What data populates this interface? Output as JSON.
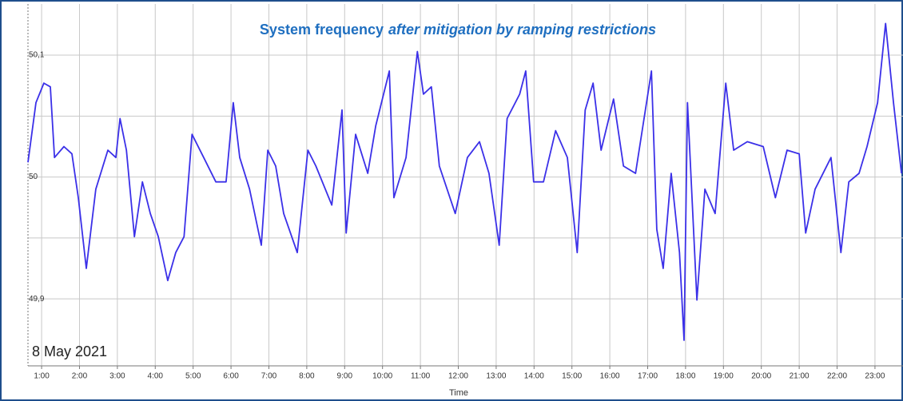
{
  "chart_data": {
    "type": "line",
    "title": "System frequency",
    "title_italic": "after mitigation by ramping restrictions",
    "date_label": "8 May 2021",
    "x_label": "Time",
    "x": [
      0.64,
      0.85,
      1.06,
      1.23,
      1.34,
      1.59,
      1.8,
      1.97,
      2.18,
      2.43,
      2.75,
      2.96,
      3.07,
      3.24,
      3.45,
      3.66,
      3.87,
      4.08,
      4.33,
      4.54,
      4.76,
      4.97,
      5.28,
      5.6,
      5.87,
      6.06,
      6.23,
      6.49,
      6.8,
      6.97,
      7.18,
      7.39,
      7.75,
      8.03,
      8.24,
      8.66,
      8.93,
      9.04,
      9.29,
      9.61,
      9.82,
      10.18,
      10.3,
      10.62,
      10.92,
      11.08,
      11.29,
      11.5,
      11.92,
      12.24,
      12.56,
      12.81,
      13.08,
      13.29,
      13.62,
      13.78,
      13.99,
      14.25,
      14.57,
      14.88,
      15.14,
      15.35,
      15.56,
      15.77,
      16.1,
      16.36,
      16.68,
      17.1,
      17.24,
      17.41,
      17.62,
      17.84,
      17.96,
      18.05,
      18.3,
      18.51,
      18.78,
      19.06,
      19.27,
      19.63,
      20.05,
      20.37,
      20.68,
      21.0,
      21.17,
      21.42,
      21.84,
      22.1,
      22.31,
      22.58,
      22.79,
      23.07,
      23.28,
      23.49,
      23.7
    ],
    "series": [
      {
        "color": "#3b30e8",
        "values": [
          50.012,
          50.061,
          50.077,
          50.074,
          50.016,
          50.025,
          50.019,
          49.983,
          49.925,
          49.99,
          50.022,
          50.016,
          50.048,
          50.022,
          49.951,
          49.996,
          49.97,
          49.951,
          49.915,
          49.938,
          49.951,
          50.035,
          50.016,
          49.996,
          49.996,
          50.061,
          50.016,
          49.99,
          49.944,
          50.022,
          50.009,
          49.97,
          49.938,
          50.022,
          50.009,
          49.977,
          50.055,
          49.954,
          50.035,
          50.003,
          50.042,
          50.087,
          49.983,
          50.016,
          50.103,
          50.068,
          50.074,
          50.009,
          49.97,
          50.016,
          50.029,
          50.003,
          49.944,
          50.048,
          50.068,
          50.087,
          49.996,
          49.996,
          50.038,
          50.016,
          49.938,
          50.055,
          50.077,
          50.022,
          50.064,
          50.009,
          50.003,
          50.087,
          49.957,
          49.925,
          50.003,
          49.938,
          49.866,
          50.061,
          49.899,
          49.99,
          49.97,
          50.077,
          50.022,
          50.029,
          50.025,
          49.983,
          50.022,
          50.019,
          49.954,
          49.99,
          50.016,
          49.938,
          49.996,
          50.003,
          50.025,
          50.061,
          50.126,
          50.061,
          50.003
        ]
      }
    ],
    "xlim": [
      0.64,
      23.74
    ],
    "xticks": [
      {
        "value": 1,
        "label": "1:00"
      },
      {
        "value": 2,
        "label": "2:00"
      },
      {
        "value": 3,
        "label": "3:00"
      },
      {
        "value": 4,
        "label": "4:00"
      },
      {
        "value": 5,
        "label": "5:00"
      },
      {
        "value": 6,
        "label": "6:00"
      },
      {
        "value": 7,
        "label": "7:00"
      },
      {
        "value": 8,
        "label": "8:00"
      },
      {
        "value": 9,
        "label": "9:00"
      },
      {
        "value": 10,
        "label": "10:00"
      },
      {
        "value": 11,
        "label": "11:00"
      },
      {
        "value": 12,
        "label": "12:00"
      },
      {
        "value": 13,
        "label": "13:00"
      },
      {
        "value": 14,
        "label": "14:00"
      },
      {
        "value": 15,
        "label": "15:00"
      },
      {
        "value": 16,
        "label": "16:00"
      },
      {
        "value": 17,
        "label": "17:00"
      },
      {
        "value": 18,
        "label": "18:00"
      },
      {
        "value": 19,
        "label": "19:00"
      },
      {
        "value": 20,
        "label": "20:00"
      },
      {
        "value": 21,
        "label": "21:00"
      },
      {
        "value": 22,
        "label": "22:00"
      },
      {
        "value": 23,
        "label": "23:00"
      }
    ],
    "ylim": [
      49.845,
      50.142
    ],
    "yticks": [
      {
        "value": 49.9,
        "label": "49,9"
      },
      50,
      {
        "value": 50.1,
        "label": "50,1"
      }
    ],
    "minor_yticks": [
      49.95,
      50.05
    ],
    "grid": true
  }
}
